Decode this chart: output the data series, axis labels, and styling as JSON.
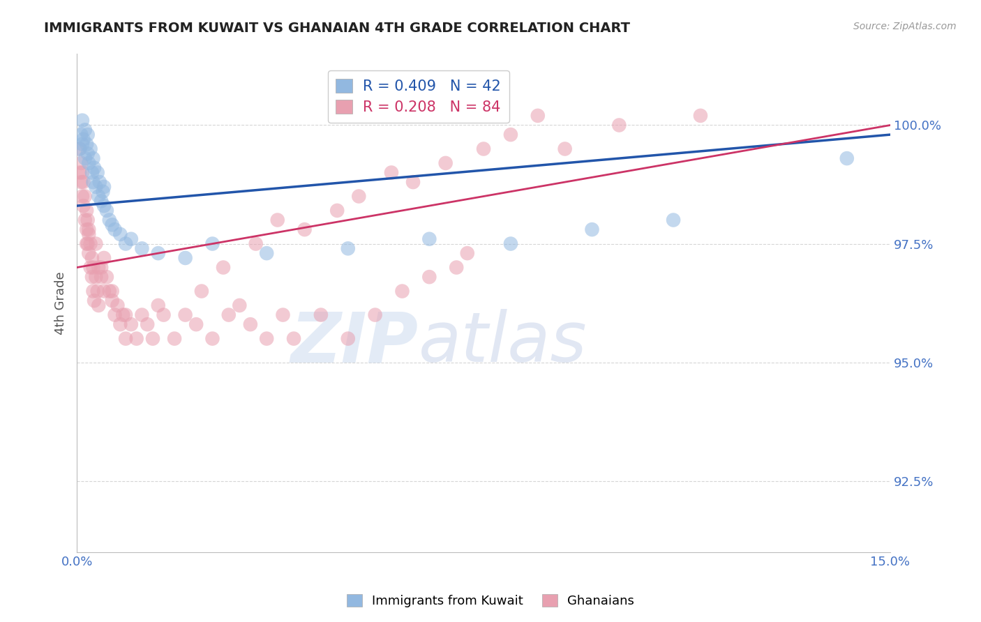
{
  "title": "IMMIGRANTS FROM KUWAIT VS GHANAIAN 4TH GRADE CORRELATION CHART",
  "source_text": "Source: ZipAtlas.com",
  "ylabel": "4th Grade",
  "xlim": [
    0.0,
    15.0
  ],
  "ylim": [
    91.0,
    101.5
  ],
  "yticks": [
    92.5,
    95.0,
    97.5,
    100.0
  ],
  "xticks": [
    0.0,
    15.0
  ],
  "xtick_labels": [
    "0.0%",
    "15.0%"
  ],
  "ytick_labels": [
    "92.5%",
    "95.0%",
    "97.5%",
    "100.0%"
  ],
  "blue_R": 0.409,
  "blue_N": 42,
  "pink_R": 0.208,
  "pink_N": 84,
  "blue_label": "Immigrants from Kuwait",
  "pink_label": "Ghanaians",
  "blue_color": "#92b8e0",
  "pink_color": "#e8a0b0",
  "blue_line_color": "#2255aa",
  "pink_line_color": "#cc3366",
  "watermark_zip": "ZIP",
  "watermark_atlas": "atlas",
  "background_color": "#ffffff",
  "title_color": "#222222",
  "axis_label_color": "#555555",
  "tick_color": "#4472c4",
  "grid_color": "#cccccc",
  "blue_scatter_x": [
    0.05,
    0.08,
    0.1,
    0.1,
    0.12,
    0.15,
    0.15,
    0.18,
    0.2,
    0.2,
    0.22,
    0.25,
    0.28,
    0.3,
    0.3,
    0.32,
    0.35,
    0.38,
    0.4,
    0.42,
    0.45,
    0.48,
    0.5,
    0.5,
    0.55,
    0.6,
    0.65,
    0.7,
    0.8,
    0.9,
    1.0,
    1.2,
    1.5,
    2.0,
    2.5,
    3.5,
    5.0,
    6.5,
    8.0,
    9.5,
    11.0,
    14.2
  ],
  "blue_scatter_y": [
    99.5,
    99.8,
    99.6,
    100.1,
    99.7,
    99.9,
    99.3,
    99.6,
    99.4,
    99.8,
    99.2,
    99.5,
    99.0,
    99.3,
    98.8,
    99.1,
    98.7,
    99.0,
    98.5,
    98.8,
    98.4,
    98.6,
    98.3,
    98.7,
    98.2,
    98.0,
    97.9,
    97.8,
    97.7,
    97.5,
    97.6,
    97.4,
    97.3,
    97.2,
    97.5,
    97.3,
    97.4,
    97.6,
    97.5,
    97.8,
    98.0,
    99.3
  ],
  "pink_scatter_x": [
    0.05,
    0.05,
    0.08,
    0.08,
    0.1,
    0.1,
    0.12,
    0.12,
    0.15,
    0.15,
    0.18,
    0.18,
    0.2,
    0.2,
    0.22,
    0.22,
    0.25,
    0.25,
    0.28,
    0.28,
    0.3,
    0.3,
    0.32,
    0.35,
    0.38,
    0.4,
    0.4,
    0.45,
    0.5,
    0.5,
    0.55,
    0.6,
    0.65,
    0.7,
    0.75,
    0.8,
    0.85,
    0.9,
    1.0,
    1.1,
    1.2,
    1.3,
    1.5,
    1.8,
    2.0,
    2.2,
    2.5,
    2.8,
    3.0,
    3.2,
    3.5,
    3.8,
    4.0,
    4.5,
    5.0,
    5.5,
    6.0,
    6.5,
    7.0,
    7.2,
    0.18,
    0.22,
    0.35,
    0.45,
    0.65,
    0.9,
    1.4,
    1.6,
    2.3,
    2.7,
    3.3,
    3.7,
    4.2,
    4.8,
    5.2,
    5.8,
    6.2,
    6.8,
    7.5,
    8.0,
    8.5,
    9.0,
    10.0,
    11.5
  ],
  "pink_scatter_y": [
    99.0,
    99.5,
    98.8,
    99.2,
    98.5,
    99.0,
    98.3,
    98.8,
    98.0,
    98.5,
    97.8,
    98.2,
    97.5,
    98.0,
    97.3,
    97.7,
    97.0,
    97.5,
    96.8,
    97.2,
    96.5,
    97.0,
    96.3,
    96.8,
    96.5,
    96.2,
    97.0,
    96.8,
    96.5,
    97.2,
    96.8,
    96.5,
    96.3,
    96.0,
    96.2,
    95.8,
    96.0,
    95.5,
    95.8,
    95.5,
    96.0,
    95.8,
    96.2,
    95.5,
    96.0,
    95.8,
    95.5,
    96.0,
    96.2,
    95.8,
    95.5,
    96.0,
    95.5,
    96.0,
    95.5,
    96.0,
    96.5,
    96.8,
    97.0,
    97.3,
    97.5,
    97.8,
    97.5,
    97.0,
    96.5,
    96.0,
    95.5,
    96.0,
    96.5,
    97.0,
    97.5,
    98.0,
    97.8,
    98.2,
    98.5,
    99.0,
    98.8,
    99.2,
    99.5,
    99.8,
    100.2,
    99.5,
    100.0,
    100.2
  ]
}
